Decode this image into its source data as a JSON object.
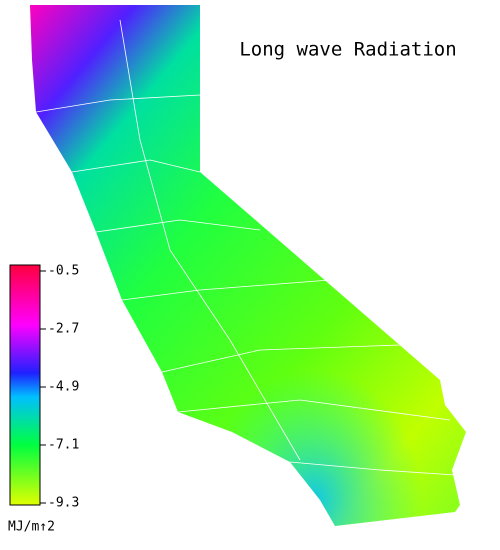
{
  "map": {
    "title": "Long wave Radiation",
    "colorbar": {
      "lim": [
        -9.3,
        -0.5
      ],
      "ticks": [
        -0.5,
        -2.7,
        -4.9,
        -7.1,
        -9.3
      ],
      "unit": "MJ/m↑2"
    }
  }
}
